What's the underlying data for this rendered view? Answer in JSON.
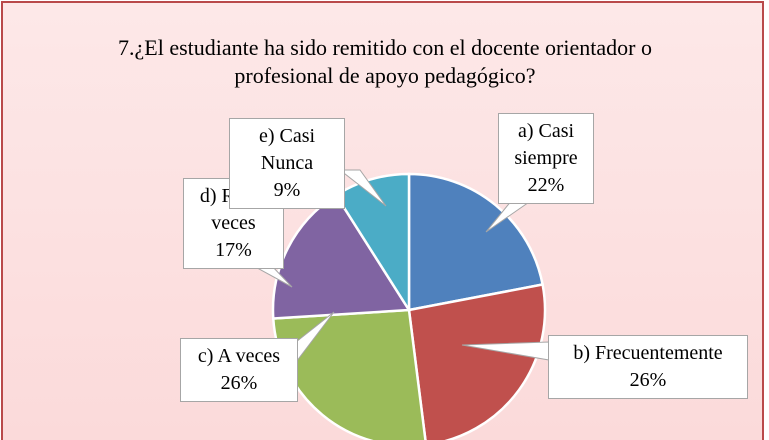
{
  "chart_data": {
    "type": "pie",
    "title": "7.¿El estudiante ha sido remitido con el docente orientador o profesional de apoyo pedagógico?",
    "categories": [
      "a) Casi siempre",
      "b) Frecuentemente",
      "c) A veces",
      "d) Raras veces",
      "e) Casi Nunca"
    ],
    "values": [
      22,
      26,
      26,
      17,
      9
    ],
    "value_labels": [
      "22%",
      "26%",
      "26%",
      "17%",
      "9%"
    ],
    "colors": [
      "#4f81bd",
      "#c0504d",
      "#9bbb59",
      "#8064a2",
      "#4bacc6"
    ]
  }
}
